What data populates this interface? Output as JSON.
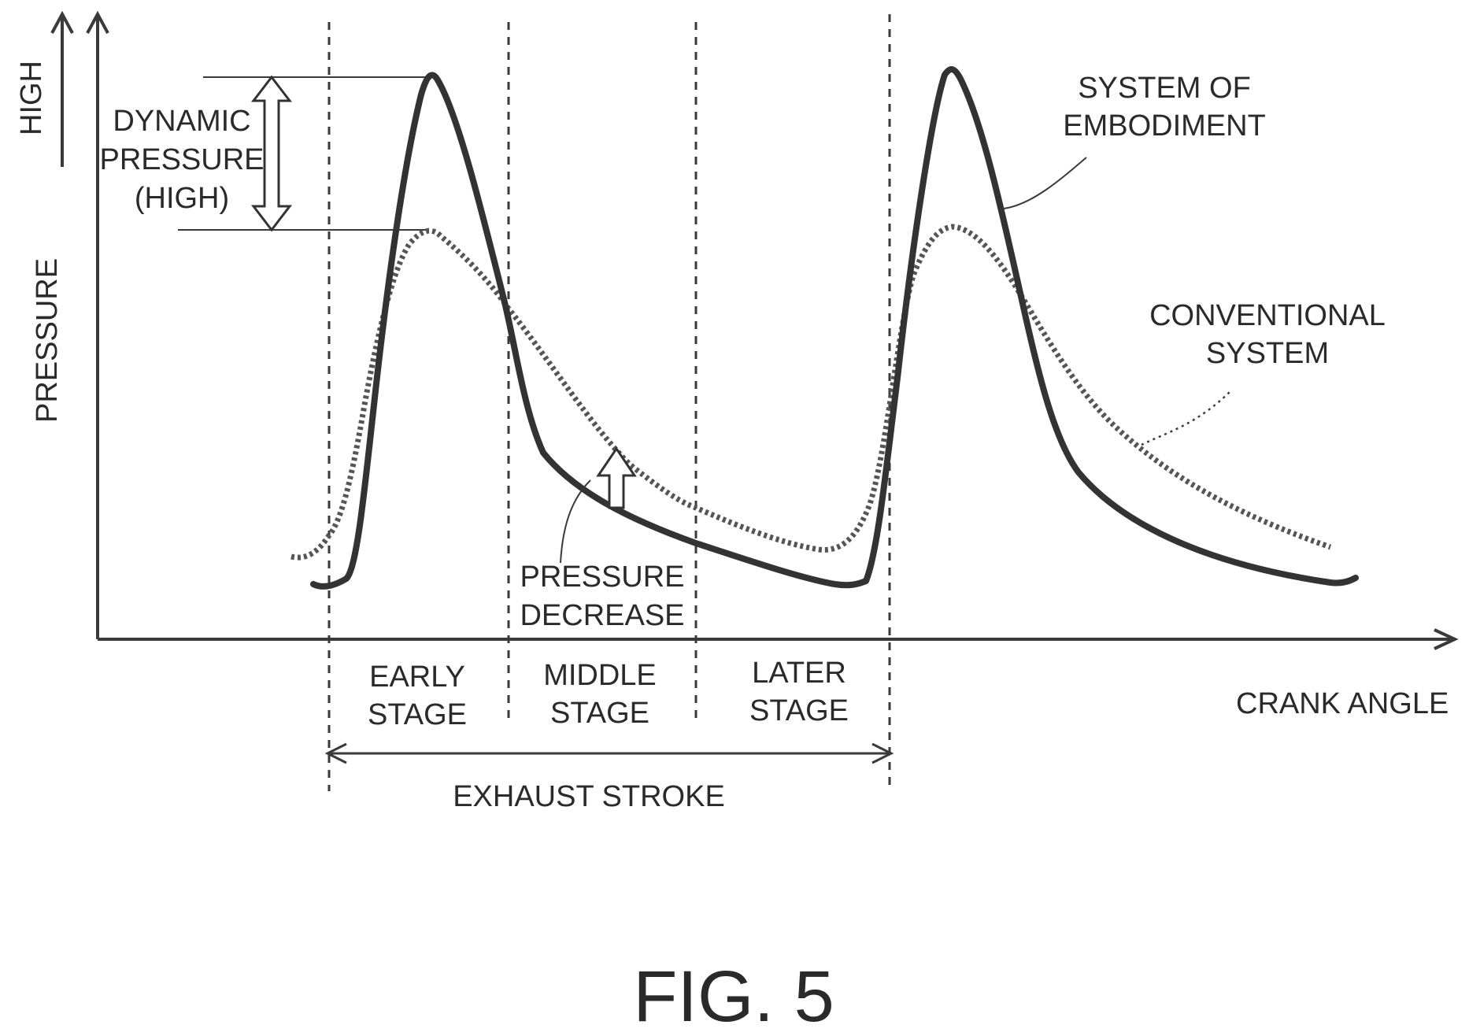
{
  "axes": {
    "y_direction_label": "HIGH",
    "y_label": "PRESSURE",
    "x_label": "CRANK ANGLE"
  },
  "annotations": {
    "dynamic_pressure": [
      "DYNAMIC",
      "PRESSURE",
      "(HIGH)"
    ],
    "pressure_decrease": [
      "PRESSURE",
      "DECREASE"
    ],
    "system_of_embodiment": [
      "SYSTEM OF",
      "EMBODIMENT"
    ],
    "conventional_system": [
      "CONVENTIONAL",
      "SYSTEM"
    ]
  },
  "stages": {
    "early": [
      "EARLY",
      "STAGE"
    ],
    "middle": [
      "MIDDLE",
      "STAGE"
    ],
    "later": [
      "LATER",
      "STAGE"
    ]
  },
  "exhaust_stroke": "EXHAUST STROKE",
  "figure_caption": "FIG. 5"
}
